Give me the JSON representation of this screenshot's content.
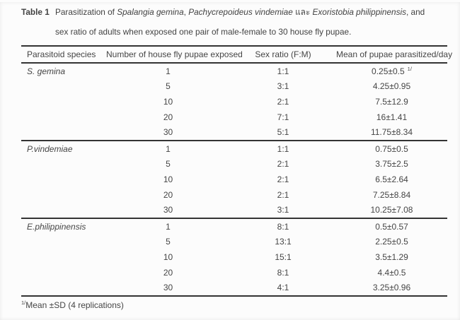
{
  "caption": {
    "label": "Table 1",
    "line1": {
      "t1": "Parasitization of ",
      "i1": "Spalangia gemina",
      "t2": ", ",
      "i2": "Pachycrepoideus vindemiae",
      "t3": " และ ",
      "i3": "Exoristobia philippinensis",
      "t4": ", and"
    },
    "line2": "sex ratio of adults when exposed one pair of male-female to 30 house fly pupae."
  },
  "table": {
    "headers": [
      "Parasitoid species",
      "Number of house fly pupae exposed",
      "Sex ratio (F:M)",
      "Mean of pupae parasitized/day"
    ],
    "sections": [
      {
        "species": "S. gemina",
        "rows": [
          {
            "pupae": "1",
            "ratio": "1:1",
            "mean": "0.25±0.5",
            "sup": "1/"
          },
          {
            "pupae": "5",
            "ratio": "3:1",
            "mean": "4.25±0.95"
          },
          {
            "pupae": "10",
            "ratio": "2:1",
            "mean": "7.5±12.9"
          },
          {
            "pupae": "20",
            "ratio": "7:1",
            "mean": "16±1.41"
          },
          {
            "pupae": "30",
            "ratio": "5:1",
            "mean": "11.75±8.34"
          }
        ]
      },
      {
        "species": "P.vindemiae",
        "rows": [
          {
            "pupae": "1",
            "ratio": "1:1",
            "mean": "0.75±0.5"
          },
          {
            "pupae": "5",
            "ratio": "2:1",
            "mean": "3.75±2.5"
          },
          {
            "pupae": "10",
            "ratio": "2:1",
            "mean": "6.5±2.64"
          },
          {
            "pupae": "20",
            "ratio": "2:1",
            "mean": "7.25±8.84"
          },
          {
            "pupae": "30",
            "ratio": "3:1",
            "mean": "10.25±7.08"
          }
        ]
      },
      {
        "species": "E.philippinensis",
        "rows": [
          {
            "pupae": "1",
            "ratio": "8:1",
            "mean": "0.5±0.57"
          },
          {
            "pupae": "5",
            "ratio": "13:1",
            "mean": "2.25±0.5"
          },
          {
            "pupae": "10",
            "ratio": "15:1",
            "mean": "3.5±1.29"
          },
          {
            "pupae": "20",
            "ratio": "8:1",
            "mean": "4.4±0.5"
          },
          {
            "pupae": "30",
            "ratio": "4:1",
            "mean": "3.25±0.96"
          }
        ]
      }
    ]
  },
  "footnote": {
    "marker": "1/",
    "text": "Mean ±SD (4 replications)"
  }
}
